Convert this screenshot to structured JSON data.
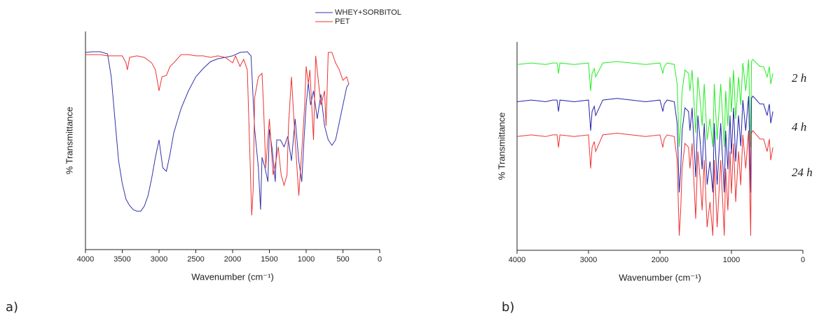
{
  "chart_data": [
    {
      "type": "line",
      "panel_label": "a)",
      "xlabel": "Wavenumber (cm⁻¹)",
      "ylabel": "% Transmittance",
      "xlim": [
        4000,
        0
      ],
      "xticks": [
        4000,
        3500,
        3000,
        2500,
        2000,
        1500,
        1000,
        500,
        0
      ],
      "ylim": [
        0,
        100
      ],
      "legend": "top",
      "series": [
        {
          "name": "WHEY+SORBITOL",
          "color": "#3333aa",
          "x": [
            4000,
            3900,
            3800,
            3700,
            3650,
            3600,
            3550,
            3500,
            3450,
            3400,
            3350,
            3300,
            3250,
            3200,
            3150,
            3100,
            3050,
            3000,
            2950,
            2900,
            2850,
            2800,
            2700,
            2600,
            2500,
            2400,
            2300,
            2200,
            2100,
            2000,
            1900,
            1800,
            1750,
            1700,
            1650,
            1620,
            1600,
            1560,
            1520,
            1500,
            1460,
            1420,
            1400,
            1350,
            1300,
            1250,
            1200,
            1150,
            1100,
            1060,
            1030,
            1000,
            970,
            940,
            900,
            850,
            800,
            750,
            700,
            650,
            600,
            550,
            500,
            450,
            420
          ],
          "values": [
            90.4,
            90.7,
            90.7,
            89.7,
            79.2,
            59.9,
            40.7,
            30.4,
            23.1,
            20.2,
            18.3,
            17.6,
            17.6,
            19.9,
            24.7,
            32.7,
            42.3,
            50.3,
            37.5,
            35.9,
            43.9,
            53.5,
            64.7,
            72.8,
            79.2,
            83.0,
            86.2,
            87.5,
            88.1,
            88.8,
            90.4,
            90.7,
            88.8,
            55.1,
            37.5,
            18.3,
            42.3,
            37.5,
            31.1,
            55.1,
            45.5,
            31.1,
            50.3,
            50.3,
            47.1,
            51.9,
            40.7,
            59.9,
            40.7,
            31.1,
            50.3,
            66.3,
            76.6,
            66.3,
            72.8,
            59.9,
            71.2,
            56.7,
            50.3,
            47.8,
            50.3,
            58.3,
            66.3,
            74.4,
            76.0
          ]
        },
        {
          "name": "PET",
          "color": "#ee3333",
          "x": [
            4000,
            3900,
            3800,
            3700,
            3600,
            3500,
            3450,
            3430,
            3400,
            3300,
            3200,
            3100,
            3050,
            3000,
            2960,
            2900,
            2850,
            2800,
            2700,
            2600,
            2500,
            2400,
            2300,
            2200,
            2100,
            2000,
            1960,
            1900,
            1850,
            1800,
            1740,
            1720,
            1700,
            1650,
            1600,
            1580,
            1550,
            1500,
            1450,
            1410,
            1380,
            1340,
            1300,
            1260,
            1240,
            1200,
            1150,
            1100,
            1050,
            1020,
            1000,
            970,
            950,
            900,
            870,
            840,
            800,
            750,
            730,
            700,
            650,
            600,
            550,
            500,
            450,
            420
          ],
          "values": [
            89.4,
            89.4,
            89.4,
            88.8,
            88.8,
            88.8,
            85.6,
            82.4,
            88.1,
            88.8,
            88.1,
            85.6,
            82.4,
            72.8,
            79.2,
            79.8,
            84.0,
            85.6,
            89.4,
            89.4,
            88.8,
            88.8,
            88.1,
            88.8,
            88.1,
            85.6,
            88.8,
            84.0,
            87.2,
            82.4,
            15.7,
            27.9,
            69.6,
            79.2,
            80.8,
            66.3,
            37.5,
            59.9,
            34.3,
            40.7,
            47.1,
            34.3,
            29.5,
            34.3,
            56.7,
            79.2,
            50.3,
            24.7,
            50.3,
            66.3,
            84.0,
            76.0,
            82.4,
            50.3,
            88.8,
            79.2,
            66.3,
            72.8,
            56.7,
            90.4,
            90.4,
            85.6,
            82.4,
            77.6,
            79.2,
            76.0
          ]
        }
      ]
    },
    {
      "type": "line",
      "panel_label": "b)",
      "xlabel": "Wavenumber (cm⁻¹)",
      "ylabel": "% Transmittance",
      "xlim": [
        4000,
        0
      ],
      "xticks": [
        4000,
        3000,
        2000,
        1000,
        0
      ],
      "ylim": [
        0,
        100
      ],
      "legend": "right",
      "x": [
        4000,
        3800,
        3600,
        3500,
        3440,
        3420,
        3400,
        3200,
        3000,
        2970,
        2950,
        2920,
        2900,
        2800,
        2600,
        2400,
        2200,
        2000,
        1960,
        1940,
        1900,
        1800,
        1760,
        1730,
        1710,
        1690,
        1650,
        1600,
        1580,
        1550,
        1500,
        1470,
        1440,
        1410,
        1380,
        1340,
        1300,
        1260,
        1240,
        1200,
        1150,
        1100,
        1080,
        1050,
        1020,
        1000,
        970,
        940,
        900,
        870,
        840,
        800,
        760,
        730,
        720,
        700,
        650,
        600,
        550,
        500,
        470,
        450,
        420
      ],
      "series": [
        {
          "name": "2 h",
          "color": "#22ee22",
          "values": [
            89.2,
            89.9,
            89.2,
            89.9,
            89.9,
            84.9,
            89.9,
            89.2,
            89.9,
            76.5,
            84.9,
            87.2,
            83.2,
            89.9,
            90.6,
            89.9,
            89.2,
            89.9,
            84.9,
            88.2,
            89.9,
            89.2,
            79.8,
            49.6,
            59.7,
            76.5,
            86.5,
            84.9,
            76.5,
            86.5,
            56.3,
            83.2,
            73.1,
            59.7,
            79.8,
            53.0,
            63.1,
            49.6,
            79.8,
            53.0,
            79.8,
            49.6,
            76.5,
            59.7,
            83.2,
            66.4,
            86.5,
            63.1,
            83.2,
            69.8,
            89.9,
            76.5,
            91.6,
            49.6,
            90.6,
            91.6,
            89.9,
            88.2,
            88.2,
            83.2,
            88.2,
            79.8,
            84.9
          ]
        },
        {
          "name": "4 h",
          "color": "#2222aa",
          "values": [
            71.3,
            72.1,
            71.3,
            72.1,
            72.1,
            66.6,
            72.1,
            71.3,
            72.1,
            57.4,
            66.6,
            69.1,
            64.7,
            72.1,
            72.9,
            72.1,
            71.3,
            72.1,
            66.6,
            70.2,
            72.1,
            71.3,
            61.0,
            27.8,
            38.9,
            57.4,
            68.4,
            66.6,
            57.4,
            68.4,
            35.1,
            64.7,
            53.6,
            38.9,
            61.0,
            31.5,
            42.6,
            27.8,
            61.0,
            31.5,
            61.0,
            27.8,
            57.4,
            38.9,
            64.7,
            46.2,
            68.4,
            42.6,
            64.7,
            50.0,
            72.1,
            57.4,
            74.0,
            27.8,
            72.9,
            74.0,
            72.1,
            70.2,
            70.2,
            64.7,
            70.2,
            61.0,
            66.6
          ]
        },
        {
          "name": "24 h",
          "color": "#ee3333",
          "values": [
            54.6,
            55.4,
            54.6,
            55.4,
            55.4,
            49.4,
            55.4,
            54.6,
            55.4,
            39.3,
            49.4,
            52.2,
            47.4,
            55.4,
            56.2,
            55.4,
            54.6,
            55.4,
            49.4,
            53.4,
            55.4,
            54.6,
            43.3,
            7.0,
            19.2,
            39.3,
            51.3,
            49.4,
            39.3,
            51.3,
            15.1,
            47.4,
            35.2,
            19.2,
            43.3,
            11.1,
            23.2,
            7.0,
            43.3,
            11.1,
            43.3,
            7.0,
            39.3,
            19.2,
            47.4,
            27.2,
            51.3,
            23.2,
            47.4,
            31.3,
            55.4,
            39.3,
            57.4,
            7.0,
            56.2,
            57.4,
            55.4,
            53.4,
            53.4,
            47.4,
            53.4,
            43.3,
            49.4
          ]
        }
      ]
    }
  ]
}
